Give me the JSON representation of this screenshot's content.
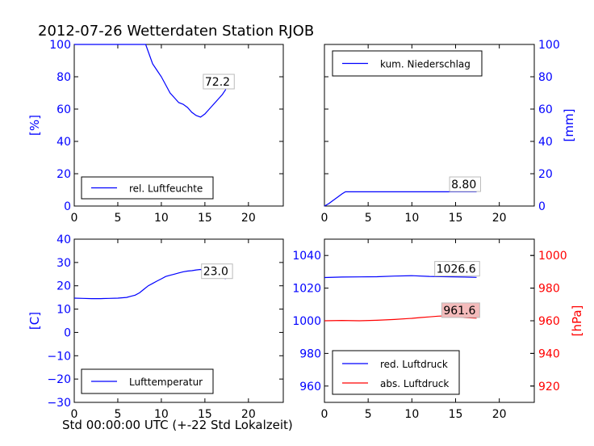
{
  "figure": {
    "title": "2012-07-26 Wetterdaten Station RJOB",
    "xlabel": "Std 00:00:00 UTC (+-22 Std Lokalzeit)"
  },
  "colors": {
    "blue": "#0000ff",
    "red": "#ff0000",
    "axis": "#000000",
    "label_bg": "#ffffff",
    "label_bg_red": "#f4bbbb"
  },
  "chart_data": [
    {
      "id": "humidity",
      "type": "line",
      "xlim": [
        0,
        24
      ],
      "xticks": [
        0,
        5,
        10,
        15,
        20
      ],
      "ylim": [
        0,
        100
      ],
      "yticks": [
        0,
        20,
        40,
        60,
        80,
        100
      ],
      "ylabel": "[%]",
      "ylabel_side": "left",
      "ylabel_color": "#0000ff",
      "ytick_color": "#0000ff",
      "legend_position": "lower-left",
      "series": [
        {
          "name": "rel. Luftfeuchte",
          "color": "#0000ff",
          "x": [
            0,
            1,
            2,
            3,
            4,
            5,
            6,
            7,
            8.2,
            8.6,
            9.0,
            9.5,
            10,
            10.5,
            11,
            11.5,
            12,
            12.5,
            13,
            13.5,
            14,
            14.5,
            15,
            15.5,
            16,
            16.5,
            17,
            17.4
          ],
          "y": [
            100,
            100,
            100,
            100,
            100,
            100,
            100,
            100,
            100,
            94,
            88,
            84,
            80,
            75,
            70,
            67,
            64,
            63,
            61,
            58,
            56,
            55,
            57,
            60,
            63,
            66,
            69,
            72.2
          ],
          "end_label": "72.2",
          "end_label_x": 15.0,
          "end_label_y": 74.5
        }
      ]
    },
    {
      "id": "precipitation",
      "type": "line",
      "xlim": [
        0,
        24
      ],
      "xticks": [
        0,
        5,
        10,
        15,
        20
      ],
      "ylim": [
        0,
        100
      ],
      "yticks": [
        0,
        20,
        40,
        60,
        80,
        100
      ],
      "ylabel": "[mm]",
      "ylabel_side": "right",
      "ylabel_color": "#0000ff",
      "ytick_color": "#0000ff",
      "legend_position": "upper-left",
      "series": [
        {
          "name": "kum. Niederschlag",
          "color": "#0000ff",
          "x": [
            0,
            0.5,
            1.0,
            1.5,
            2.0,
            2.4,
            3,
            5,
            10,
            15,
            17.4
          ],
          "y": [
            0,
            1.5,
            3.5,
            5.5,
            7.5,
            8.8,
            8.8,
            8.8,
            8.8,
            8.8,
            8.8
          ],
          "end_label": "8.80",
          "end_label_x": 14.5,
          "end_label_y": 11
        }
      ]
    },
    {
      "id": "temperature",
      "type": "line",
      "xlim": [
        0,
        24
      ],
      "xticks": [
        0,
        5,
        10,
        15,
        20
      ],
      "ylim": [
        -30,
        40
      ],
      "yticks": [
        -30,
        -20,
        -10,
        0,
        10,
        20,
        30,
        40
      ],
      "ylabel": "[C]",
      "ylabel_side": "left",
      "ylabel_color": "#0000ff",
      "ytick_color": "#0000ff",
      "legend_position": "lower-left",
      "series": [
        {
          "name": "Lufttemperatur",
          "color": "#0000ff",
          "x": [
            0,
            1,
            2,
            3,
            4,
            5,
            6,
            6.5,
            7,
            7.5,
            8,
            8.5,
            9,
            9.5,
            10,
            10.5,
            11,
            11.5,
            12,
            12.5,
            13,
            13.5,
            14,
            14.5,
            15,
            15.5,
            16,
            16.5,
            17,
            17.4
          ],
          "y": [
            14.7,
            14.6,
            14.5,
            14.5,
            14.6,
            14.7,
            15.0,
            15.5,
            16.0,
            17.0,
            18.5,
            20.0,
            21.0,
            22.0,
            23.0,
            24.0,
            24.5,
            25.0,
            25.5,
            26.0,
            26.3,
            26.5,
            26.8,
            27.0,
            26.5,
            25.5,
            24.8,
            24.2,
            23.5,
            23.0
          ],
          "end_label": "23.0",
          "end_label_x": 14.8,
          "end_label_y": 24.5
        }
      ]
    },
    {
      "id": "pressure",
      "type": "line",
      "xlim": [
        0,
        24
      ],
      "xticks": [
        0,
        5,
        10,
        15,
        20
      ],
      "ylim": [
        950,
        1050
      ],
      "yticks": [
        960,
        980,
        1000,
        1020,
        1040
      ],
      "ytick_color": "#0000ff",
      "y2lim": [
        910,
        1010
      ],
      "y2ticks": [
        920,
        940,
        960,
        980,
        1000
      ],
      "y2tick_color": "#ff0000",
      "y2label": "[hPa]",
      "y2label_color": "#ff0000",
      "legend_position": "lower-left",
      "series": [
        {
          "name": "red. Luftdruck",
          "color": "#0000ff",
          "axis": "left",
          "x": [
            0,
            2,
            4,
            6,
            8,
            10,
            12,
            14,
            16,
            17.4
          ],
          "y": [
            1026.5,
            1026.8,
            1026.9,
            1027.0,
            1027.4,
            1027.6,
            1027.2,
            1027.0,
            1026.8,
            1026.6
          ],
          "end_label": "1026.6",
          "end_label_x": 12.8,
          "end_label_y": 1029.4
        },
        {
          "name": "abs. Luftdruck",
          "color": "#ff0000",
          "axis": "right",
          "x": [
            0,
            2,
            4,
            6,
            8,
            10,
            11,
            12,
            13,
            14,
            15,
            16,
            17.4
          ],
          "y": [
            960.0,
            960.2,
            960.0,
            960.3,
            960.8,
            961.5,
            962.0,
            962.4,
            962.8,
            963.0,
            962.5,
            962.0,
            961.6
          ],
          "end_label": "961.6",
          "end_label_x": 13.6,
          "end_label_y": 964.0
        }
      ]
    }
  ]
}
